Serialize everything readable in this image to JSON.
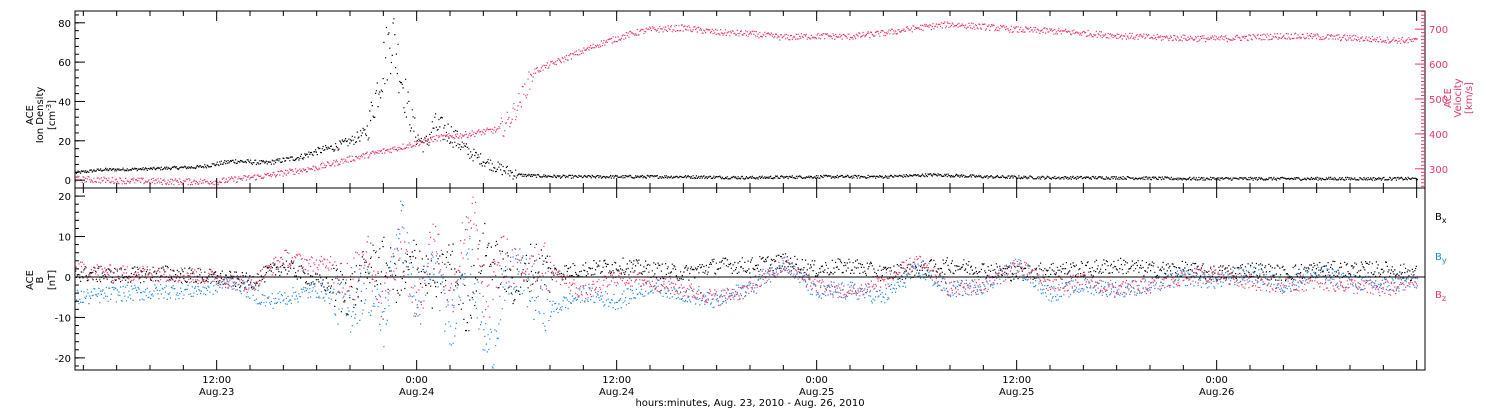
{
  "colors": {
    "density": "#000000",
    "velocity": "#e8386a",
    "bx": "#000000",
    "by": "#1e88e5",
    "bz": "#e8386a",
    "frame": "#000000"
  },
  "chart_data": [
    {
      "type": "scatter",
      "panel": "top",
      "x_unit": "hours since 0:00 Aug 23, 2010",
      "xlim": [
        3.5,
        84.5
      ],
      "left_axis": {
        "label_lines": [
          "ACE",
          "Ion Density"
        ],
        "unit": "[cm",
        "unit_sup": "-3",
        "unit_close": "]",
        "ylim": [
          -4,
          86
        ],
        "ticks": [
          0,
          20,
          40,
          60,
          80
        ]
      },
      "right_axis": {
        "label_lines": [
          "ACE",
          "Velocity"
        ],
        "unit": "[km/s]",
        "ylim": [
          245,
          752
        ],
        "ticks": [
          300,
          400,
          500,
          600,
          700
        ]
      },
      "series": [
        {
          "key": "density",
          "axis": "left",
          "x": [
            3.5,
            5,
            8,
            11,
            13,
            15,
            17,
            18,
            19,
            20,
            21,
            22,
            22.5,
            23,
            23.5,
            24,
            24.5,
            25,
            26,
            27,
            28,
            29,
            30,
            31,
            33,
            36,
            40,
            44,
            48,
            52,
            55,
            58,
            62,
            66,
            70,
            74,
            78,
            82,
            84
          ],
          "y": [
            4,
            5.5,
            6,
            7,
            10,
            9,
            12,
            15,
            17,
            20,
            25,
            60,
            75,
            55,
            35,
            22,
            18,
            28,
            24,
            15,
            10,
            6,
            3,
            2.5,
            2,
            2,
            2,
            1.5,
            2,
            2,
            3,
            2,
            1.5,
            1.5,
            1,
            1,
            1,
            1,
            1
          ]
        },
        {
          "key": "velocity",
          "axis": "right",
          "x": [
            3.5,
            6,
            9,
            12,
            15,
            18,
            20,
            22,
            24,
            25,
            27,
            29,
            29.5,
            30,
            30.5,
            31,
            33,
            35,
            37,
            38,
            40,
            42,
            44,
            46,
            48,
            50,
            52,
            54,
            56,
            58,
            60,
            62,
            64,
            66,
            68,
            70,
            72,
            74,
            76,
            78,
            80,
            82,
            84
          ],
          "y": [
            272,
            268,
            265,
            265,
            282,
            305,
            330,
            352,
            375,
            388,
            400,
            415,
            440,
            480,
            530,
            580,
            620,
            660,
            690,
            700,
            705,
            692,
            688,
            678,
            682,
            680,
            690,
            705,
            715,
            708,
            700,
            696,
            690,
            683,
            678,
            676,
            674,
            678,
            682,
            680,
            676,
            671,
            668
          ]
        }
      ]
    },
    {
      "type": "scatter",
      "panel": "bottom",
      "x_unit": "hours since 0:00 Aug 23, 2010",
      "xlim": [
        3.5,
        84.5
      ],
      "left_axis": {
        "label_lines": [
          "ACE",
          "B"
        ],
        "unit": "[nT]",
        "ylim": [
          -23,
          22
        ],
        "ticks": [
          -20,
          -10,
          0,
          10,
          20
        ]
      },
      "zero_line": true,
      "legend": {
        "placement": "right",
        "entries": [
          {
            "key": "bx",
            "label": "B",
            "sub": "x"
          },
          {
            "key": "by",
            "label": "B",
            "sub": "y"
          },
          {
            "key": "bz",
            "label": "B",
            "sub": "z"
          }
        ]
      },
      "series": [
        {
          "key": "bx",
          "x": [
            3.5,
            6,
            9,
            12,
            14,
            16,
            18,
            20,
            21,
            22,
            23,
            24,
            25,
            26,
            27,
            28,
            29,
            30,
            31,
            32,
            34,
            36,
            38,
            40,
            42,
            44,
            46,
            48,
            50,
            52,
            54,
            56,
            58,
            60,
            62,
            64,
            66,
            68,
            70,
            72,
            74,
            76,
            78,
            80,
            82,
            84
          ],
          "y": [
            1,
            0.5,
            1,
            0,
            -1,
            3,
            -1,
            -4,
            2,
            4,
            -2,
            6,
            -3,
            5,
            -9,
            8,
            2,
            -2,
            4,
            1,
            2,
            3,
            2,
            1,
            3,
            3,
            4,
            2,
            3,
            1,
            2,
            3,
            2,
            1,
            2,
            2,
            3,
            2,
            2,
            1,
            2,
            1,
            2,
            2,
            2,
            1
          ]
        },
        {
          "key": "by",
          "x": [
            3.5,
            6,
            9,
            11,
            13,
            15,
            17,
            18,
            19,
            20,
            21,
            22,
            23,
            24,
            25,
            26,
            27,
            28,
            28.5,
            29,
            30,
            31,
            32,
            34,
            36,
            38,
            40,
            42,
            44,
            46,
            48,
            50,
            52,
            54,
            56,
            58,
            60,
            62,
            64,
            66,
            68,
            70,
            72,
            74,
            76,
            78,
            80,
            82,
            84
          ],
          "y": [
            -5,
            -4,
            -3.5,
            -3,
            -1,
            -6,
            -4,
            -3,
            -5,
            -8,
            -2,
            -12,
            16,
            -9,
            4,
            -14,
            8,
            -15,
            -18,
            -6,
            3,
            -5,
            -8,
            -4,
            -6,
            -2,
            -4,
            -6,
            -2,
            4,
            -4,
            -3,
            -5,
            2,
            -3,
            -2,
            3,
            -4,
            -2,
            -3,
            -2,
            0,
            -1,
            1,
            -2,
            1,
            -1,
            -2,
            -1
          ]
        },
        {
          "key": "bz",
          "x": [
            3.5,
            6,
            9,
            12,
            14,
            16,
            18,
            19,
            20,
            21,
            22,
            23,
            24,
            25,
            26,
            27,
            27.5,
            28,
            29,
            30,
            31,
            32,
            34,
            36,
            38,
            40,
            42,
            44,
            46,
            48,
            50,
            52,
            54,
            56,
            58,
            60,
            62,
            64,
            66,
            68,
            70,
            72,
            74,
            76,
            78,
            80,
            82,
            84
          ],
          "y": [
            2,
            1,
            1,
            0,
            -2,
            5,
            3,
            4,
            -3,
            9,
            -6,
            10,
            -9,
            12,
            -6,
            15,
            14,
            -10,
            6,
            1,
            4,
            2,
            -4,
            0,
            -1,
            -3,
            -5,
            -3,
            3,
            -2,
            -4,
            -1,
            4,
            -3,
            -2,
            3,
            -2,
            -1,
            -3,
            -2,
            0,
            1,
            -1,
            -2,
            -1,
            -2,
            -3,
            -1
          ]
        }
      ]
    }
  ],
  "x_axis": {
    "ticks": [
      {
        "x": 12,
        "time": "12:00",
        "date": "Aug.23"
      },
      {
        "x": 24,
        "time": "0:00",
        "date": "Aug.24"
      },
      {
        "x": 36,
        "time": "12:00",
        "date": "Aug.24"
      },
      {
        "x": 48,
        "time": "0:00",
        "date": "Aug.25"
      },
      {
        "x": 60,
        "time": "12:00",
        "date": "Aug.25"
      },
      {
        "x": 72,
        "time": "0:00",
        "date": "Aug.26"
      }
    ],
    "title": "hours:minutes, Aug. 23, 2010 - Aug. 26, 2010"
  }
}
